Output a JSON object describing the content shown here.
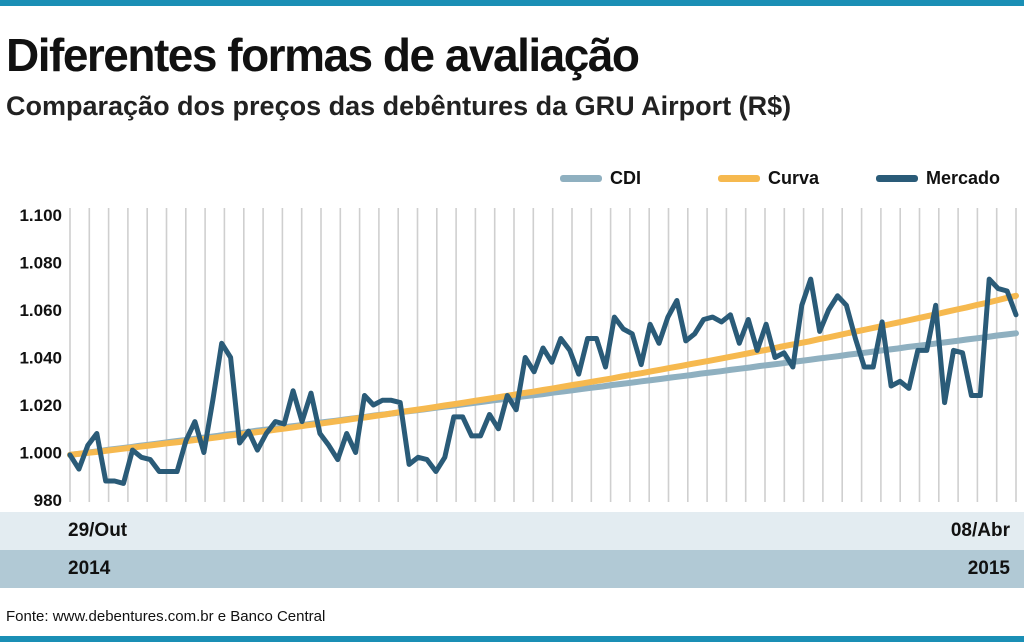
{
  "title": "Diferentes formas de avaliação",
  "subtitle": "Comparação dos preços das debêntures da GRU Airport (R$)",
  "source": "Fonte: www.debentures.com.br e Banco Central",
  "axis_bands": {
    "start_date": "29/Out",
    "end_date": "08/Abr",
    "start_year": "2014",
    "end_year": "2015"
  },
  "colors": {
    "cdi": "#8fb0c0",
    "curva": "#f6b94f",
    "mercado": "#2a5b78",
    "accent": "#1a8fb5",
    "band_light": "#e3ecf1",
    "band_dark": "#b1c9d5"
  },
  "chart_data": {
    "type": "line",
    "ylim": [
      980,
      1100
    ],
    "yticks": [
      "980",
      "1.000",
      "1.020",
      "1.040",
      "1.060",
      "1.080",
      "1.100"
    ],
    "ytick_values": [
      980,
      1000,
      1020,
      1040,
      1060,
      1080,
      1100
    ],
    "grid": "vertical",
    "legend_position": "top-right",
    "series": [
      {
        "name": "CDI",
        "color": "#8fb0c0",
        "values": [
          999.0,
          999.5,
          1000.1,
          1000.6,
          1001.2,
          1001.7,
          1002.2,
          1002.8,
          1003.3,
          1003.8,
          1004.4,
          1004.9,
          1005.4,
          1006.0,
          1006.5,
          1007.0,
          1007.6,
          1008.1,
          1008.6,
          1009.2,
          1009.7,
          1010.2,
          1010.8,
          1011.3,
          1011.8,
          1012.4,
          1012.9,
          1013.4,
          1014.0,
          1014.5,
          1015.0,
          1015.6,
          1016.1,
          1016.6,
          1017.2,
          1017.7,
          1018.2,
          1018.8,
          1019.3,
          1019.8,
          1020.4,
          1020.9,
          1021.4,
          1022.0,
          1022.5,
          1023.0,
          1023.6,
          1024.1,
          1024.6,
          1025.2,
          1025.7,
          1026.2,
          1026.8,
          1027.3,
          1027.8,
          1028.4,
          1028.9,
          1029.4,
          1030.0,
          1030.5,
          1031.0,
          1031.6,
          1032.1,
          1032.6,
          1033.2,
          1033.7,
          1034.2,
          1034.8,
          1035.3,
          1035.8,
          1036.4,
          1036.9,
          1037.4,
          1038.0,
          1038.5,
          1039.0,
          1039.6,
          1040.1,
          1040.6,
          1041.2,
          1041.7,
          1042.2,
          1042.8,
          1043.3,
          1043.8,
          1044.4,
          1044.9,
          1045.4,
          1046.0,
          1046.5,
          1047.0,
          1047.6,
          1048.1,
          1048.6,
          1049.2,
          1049.7,
          1050.2
        ]
      },
      {
        "name": "Curva",
        "color": "#f6b94f",
        "values": [
          999.0,
          999.5,
          999.9,
          1000.4,
          1000.9,
          1001.4,
          1001.9,
          1002.4,
          1002.9,
          1003.4,
          1003.9,
          1004.4,
          1004.9,
          1005.4,
          1005.9,
          1006.4,
          1007.0,
          1007.5,
          1008.0,
          1008.6,
          1009.1,
          1009.7,
          1010.2,
          1010.8,
          1011.4,
          1011.9,
          1012.5,
          1013.1,
          1013.7,
          1014.3,
          1014.8,
          1015.4,
          1016.0,
          1016.7,
          1017.3,
          1017.9,
          1018.5,
          1019.1,
          1019.8,
          1020.4,
          1021.0,
          1021.7,
          1022.3,
          1023.0,
          1023.6,
          1024.3,
          1025.0,
          1025.6,
          1026.3,
          1027.0,
          1027.7,
          1028.4,
          1029.1,
          1029.8,
          1030.5,
          1031.2,
          1032.0,
          1032.7,
          1033.4,
          1034.2,
          1034.9,
          1035.7,
          1036.4,
          1037.2,
          1038.0,
          1038.7,
          1039.5,
          1040.3,
          1041.1,
          1041.9,
          1042.7,
          1043.5,
          1044.4,
          1045.2,
          1046.0,
          1046.8,
          1047.7,
          1048.5,
          1049.4,
          1050.3,
          1051.1,
          1052.0,
          1052.9,
          1053.8,
          1054.7,
          1055.6,
          1056.5,
          1057.4,
          1058.3,
          1059.3,
          1060.2,
          1061.1,
          1062.1,
          1063.0,
          1064.0,
          1065.0,
          1066.0
        ]
      },
      {
        "name": "Mercado",
        "color": "#2a5b78",
        "values": [
          999,
          993,
          1003,
          1008,
          988,
          988,
          987,
          1001,
          998,
          997,
          992,
          992,
          992,
          1005,
          1013,
          1000,
          1022,
          1046,
          1040,
          1004,
          1009,
          1001,
          1008,
          1013,
          1012,
          1026,
          1013,
          1025,
          1008,
          1003,
          997,
          1008,
          1000,
          1024,
          1020,
          1022,
          1022,
          1021,
          995,
          998,
          997,
          992,
          998,
          1015,
          1015,
          1007,
          1007,
          1016,
          1010,
          1024,
          1018,
          1040,
          1034,
          1044,
          1038,
          1048,
          1043,
          1033,
          1048,
          1048,
          1036,
          1057,
          1052,
          1050,
          1037,
          1054,
          1046,
          1057,
          1064,
          1047,
          1050,
          1056,
          1057,
          1055,
          1058,
          1046,
          1056,
          1043,
          1054,
          1040,
          1042,
          1036,
          1062,
          1073,
          1051,
          1060,
          1066,
          1062,
          1048,
          1036,
          1036,
          1055,
          1028,
          1030,
          1027,
          1043,
          1043,
          1062,
          1021,
          1043,
          1042,
          1024,
          1024,
          1073,
          1069,
          1068,
          1058
        ]
      }
    ]
  }
}
